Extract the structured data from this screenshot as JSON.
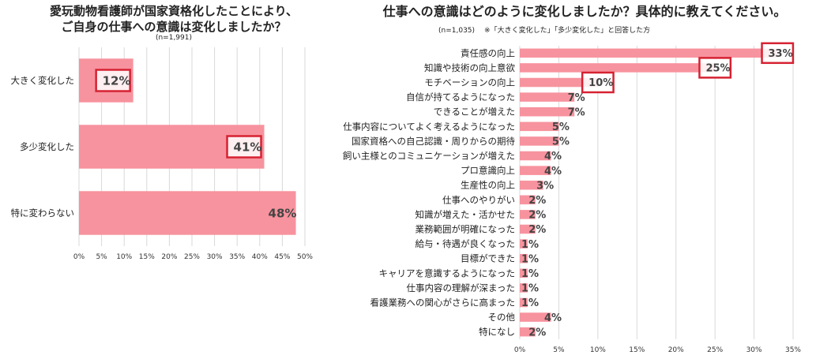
{
  "left": {
    "title_line1": "愛玩動物看護師が国家資格化したことにより、",
    "title_line2": "ご自身の仕事への意識は変化しましたか？",
    "sample": "(n=1,991)"
  },
  "right": {
    "title": "仕事への意識はどのように変化しましたか？具体的に教えてください。",
    "sample": "(n=1,035)",
    "note": "※「大きく変化した」「多少変化した」と回答した方"
  },
  "colors": {
    "bar": "#f7939e",
    "highlight": "#d62232",
    "grid": "#d9d9d9"
  },
  "chart_data": [
    {
      "type": "bar",
      "orientation": "horizontal",
      "title": "愛玩動物看護師が国家資格化したことにより、ご自身の仕事への意識は変化しましたか？",
      "categories": [
        "大きく変化した",
        "多少変化した",
        "特に変わらない"
      ],
      "values": [
        12,
        41,
        48
      ],
      "value_labels": [
        "12%",
        "41%",
        "48%"
      ],
      "highlighted": [
        true,
        true,
        false
      ],
      "xlim": [
        0,
        50
      ],
      "xticks": [
        "0%",
        "5%",
        "10%",
        "15%",
        "20%",
        "25%",
        "30%",
        "35%",
        "40%",
        "45%",
        "50%"
      ],
      "grid": true
    },
    {
      "type": "bar",
      "orientation": "horizontal",
      "title": "仕事への意識はどのように変化しましたか？具体的に教えてください。",
      "categories": [
        "責任感の向上",
        "知識や技術の向上意欲",
        "モチベーションの向上",
        "自信が持てるようになった",
        "できることが増えた",
        "仕事内容についてよく考えるようになった",
        "国家資格への自己認識・周りからの期待",
        "飼い主様とのコミュニケーションが増えた",
        "プロ意識向上",
        "生産性の向上",
        "仕事へのやりがい",
        "知識が増えた・活かせた",
        "業務範囲が明確になった",
        "給与・待遇が良くなった",
        "目標ができた",
        "キャリアを意識するようになった",
        "仕事内容の理解が深まった",
        "看護業務への関心がさらに高まった",
        "その他",
        "特になし"
      ],
      "values": [
        33,
        25,
        10,
        7,
        7,
        5,
        5,
        4,
        4,
        3,
        2,
        2,
        2,
        1,
        1,
        1,
        1,
        1,
        4,
        2
      ],
      "value_labels": [
        "33%",
        "25%",
        "10%",
        "7%",
        "7%",
        "5%",
        "5%",
        "4%",
        "4%",
        "3%",
        "2%",
        "2%",
        "2%",
        "1%",
        "1%",
        "1%",
        "1%",
        "1%",
        "4%",
        "2%"
      ],
      "highlighted": [
        true,
        true,
        true,
        false,
        false,
        false,
        false,
        false,
        false,
        false,
        false,
        false,
        false,
        false,
        false,
        false,
        false,
        false,
        false,
        false
      ],
      "xlim": [
        0,
        35
      ],
      "xticks": [
        "0%",
        "5%",
        "10%",
        "15%",
        "20%",
        "25%",
        "30%",
        "35%"
      ],
      "grid": true
    }
  ]
}
